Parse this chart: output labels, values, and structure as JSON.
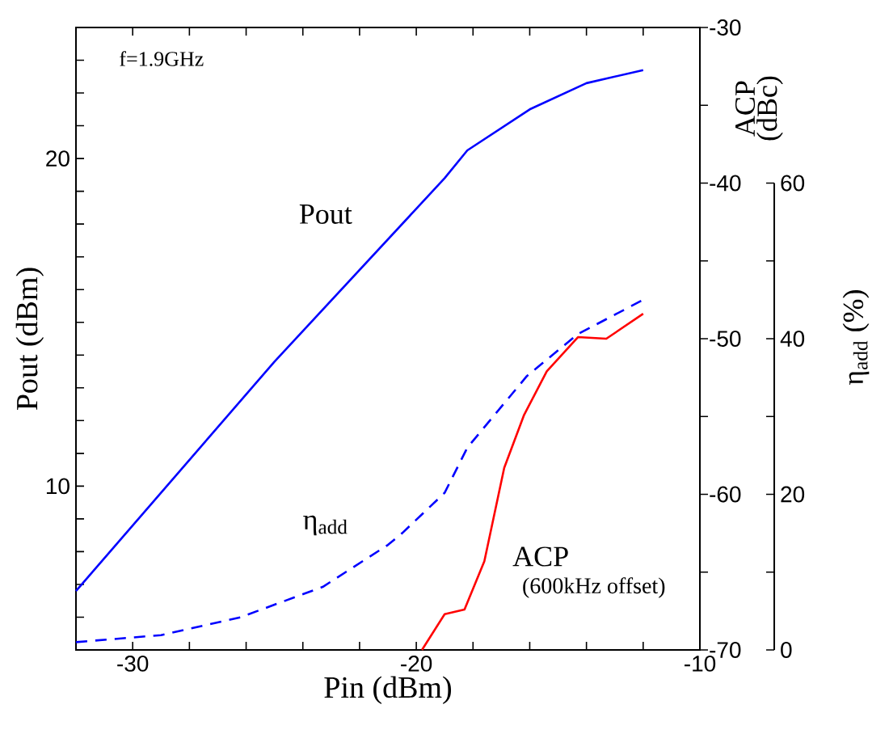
{
  "chart_data": {
    "type": "line",
    "xlabel": "Pin (dBm)",
    "ylabel": "Pout (dBm)",
    "y2label": "ACP (dBc)",
    "y3label": "η$_{add}$ (%)",
    "annotations": [
      "f=1.9GHz",
      "(600kHz offset)"
    ],
    "xlim": [
      -32,
      -10
    ],
    "ylim": [
      5,
      24
    ],
    "y2lim": [
      -70,
      -30
    ],
    "y3lim": [
      0,
      60
    ],
    "xticks": [
      {
        "value": -32,
        "label": null
      },
      -30,
      {
        "value": -28,
        "label": null
      },
      {
        "value": -26,
        "label": null
      },
      {
        "value": -24,
        "label": null
      },
      {
        "value": -22,
        "label": null
      },
      -20,
      {
        "value": -18,
        "label": null
      },
      {
        "value": -16,
        "label": null
      },
      {
        "value": -14,
        "label": null
      },
      {
        "value": -12,
        "label": null
      },
      -10
    ],
    "yticks": [
      {
        "value": 6,
        "label": null
      },
      {
        "value": 7,
        "label": null
      },
      {
        "value": 8,
        "label": null
      },
      {
        "value": 9,
        "label": null
      },
      10,
      {
        "value": 11,
        "label": null
      },
      {
        "value": 12,
        "label": null
      },
      {
        "value": 13,
        "label": null
      },
      {
        "value": 14,
        "label": null
      },
      {
        "value": 15,
        "label": null
      },
      {
        "value": 16,
        "label": null
      },
      {
        "value": 17,
        "label": null
      },
      {
        "value": 18,
        "label": null
      },
      {
        "value": 19,
        "label": null
      },
      20,
      {
        "value": 21,
        "label": null
      },
      {
        "value": 22,
        "label": null
      },
      {
        "value": 23,
        "label": null
      }
    ],
    "y2ticks": [
      -70,
      {
        "value": -65,
        "label": null
      },
      -60,
      {
        "value": -55,
        "label": null
      },
      -50,
      {
        "value": -45,
        "label": null
      },
      -40,
      {
        "value": -35,
        "label": null
      },
      -30
    ],
    "y3ticks": [
      0,
      {
        "value": 10,
        "label": null
      },
      20,
      {
        "value": 30,
        "label": null
      },
      40,
      {
        "value": 50,
        "label": null
      },
      60
    ],
    "marker": "none",
    "series": [
      {
        "name": "Pout",
        "color": "#0000ff",
        "line_style": "solid",
        "x": [
          -32,
          -25,
          -19,
          -18.2,
          -16,
          -14,
          -12
        ],
        "values": [
          6.8,
          13.8,
          19.4,
          20.25,
          21.5,
          22.3,
          22.7
        ]
      },
      {
        "name": "ACP",
        "color": "#ff0000",
        "line_style": "solid",
        "axis": "y2",
        "x": [
          -19.8,
          -19,
          -18.3,
          -17.6,
          -16.9,
          -16.2,
          -15.4,
          -14.3,
          -13.3,
          -12
        ],
        "values": [
          -70,
          -67.7,
          -67.4,
          -64.3,
          -58.3,
          -54.9,
          -52.1,
          -49.9,
          -50,
          -48.4
        ]
      },
      {
        "name": "η$_{add}$",
        "color": "#0000ff",
        "line_style": "dashed",
        "axis": "y3",
        "x": [
          -32,
          -29,
          -26.2,
          -23.3,
          -21,
          -20.5,
          -19,
          -18.2,
          -16.1,
          -14.3,
          -12
        ],
        "values": [
          1,
          1.9,
          4.2,
          8.1,
          13.5,
          15,
          20.2,
          26,
          35.2,
          40.6,
          45
        ]
      }
    ]
  }
}
